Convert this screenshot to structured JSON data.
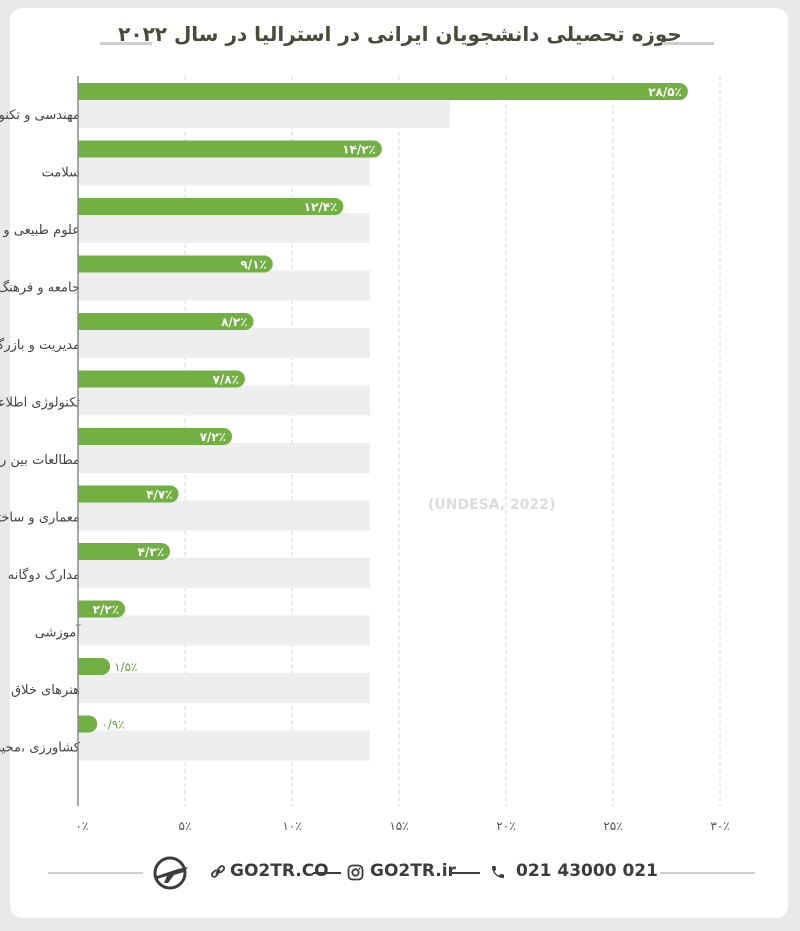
{
  "chart_data": {
    "type": "bar",
    "orientation": "horizontal",
    "title": "حوزه تحصیلی دانشجویان ایرانی در استرالیا در سال ۲۰۲۲",
    "categories": [
      "مهندسی و تکنولوژی‌های وابسته",
      "سلامت",
      "علوم طبیعی و فیزیک",
      "جامعه و فرهنگ",
      "مدیریت و بازرگانی",
      "تکنولوژی اطلاعات",
      "مطالعات بین رشته‌ای",
      "معماری و ساختمان",
      "مدارک دوگانه",
      "آموزشی",
      "هنرهای خلاق",
      "کشاورزی ،محیط زیست و مطالعات مرتبط"
    ],
    "values": [
      28.5,
      14.2,
      12.4,
      9.1,
      8.2,
      7.8,
      7.2,
      4.7,
      4.3,
      2.2,
      1.5,
      0.9
    ],
    "value_labels": [
      "۲۸/۵٪",
      "۱۴/۲٪",
      "۱۲/۴٪",
      "۹/۱٪",
      "۸/۲٪",
      "۷/۸٪",
      "۷/۲٪",
      "۴/۷٪",
      "۴/۳٪",
      "۲/۲٪",
      "۱/۵٪",
      "۰/۹٪"
    ],
    "xticks": [
      0,
      5,
      10,
      15,
      20,
      25,
      30
    ],
    "xtick_labels": [
      "۰٪",
      "۵٪",
      "۱۰٪",
      "۱۵٪",
      "۲۰٪",
      "۲۵٪",
      "۳۰٪"
    ],
    "xlim": [
      0,
      30
    ],
    "grid": true,
    "bar_color": "#72b043",
    "track_color": "#eeeeee",
    "source_watermark": "(UNDESA, 2022)"
  },
  "footer": {
    "website": "GO2TR.CO",
    "instagram": "GO2TR.ir",
    "phone": "021 43000 021"
  }
}
